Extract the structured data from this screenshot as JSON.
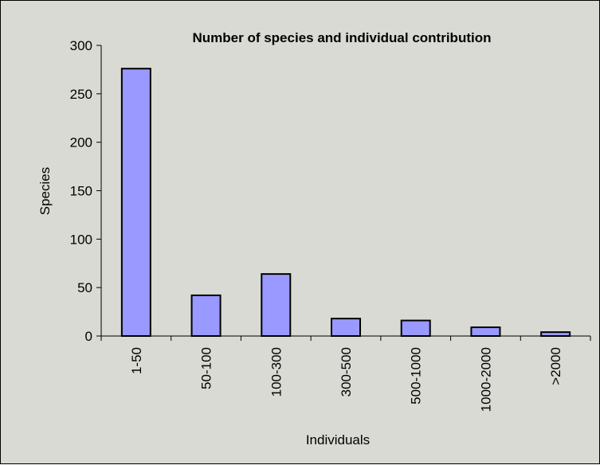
{
  "chart_data": {
    "type": "bar",
    "title": "Number of species and individual contribution",
    "xlabel": "Individuals",
    "ylabel": "Species",
    "categories": [
      "1-50",
      "50-100",
      "100-300",
      "300-500",
      "500-1000",
      "1000-2000",
      ">2000"
    ],
    "values": [
      276,
      42,
      64,
      18,
      16,
      9,
      4
    ],
    "ylim": [
      0,
      300
    ],
    "yticks": [
      "0",
      "50",
      "100",
      "150",
      "200",
      "250",
      "300"
    ],
    "grid": false,
    "legend": "none",
    "colors": {
      "bar_fill": "#9999ff",
      "bar_stroke": "#000000",
      "plot_background": "#d9dad4",
      "axis": "#000000"
    }
  }
}
